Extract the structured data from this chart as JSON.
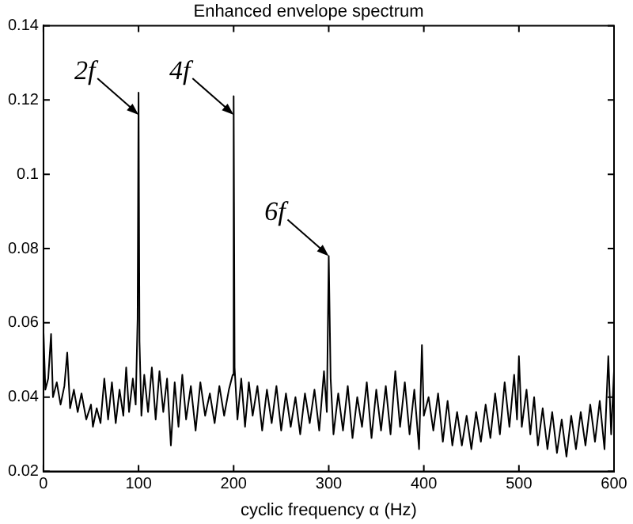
{
  "chart_data": {
    "type": "line",
    "title": "Enhanced envelope spectrum",
    "xlabel": "cyclic frequency α (Hz)",
    "x": [
      0,
      2,
      5,
      8,
      10,
      14,
      18,
      22,
      25,
      28,
      32,
      36,
      40,
      45,
      50,
      52,
      56,
      60,
      64,
      68,
      72,
      76,
      80,
      84,
      87,
      90,
      94,
      97,
      99,
      100,
      101,
      103,
      106,
      110,
      114,
      118,
      122,
      126,
      130,
      134,
      138,
      142,
      146,
      150,
      155,
      160,
      165,
      170,
      175,
      180,
      185,
      190,
      195,
      199,
      200,
      201,
      204,
      208,
      212,
      216,
      220,
      225,
      230,
      235,
      240,
      245,
      250,
      255,
      260,
      265,
      270,
      275,
      280,
      285,
      290,
      295,
      298,
      300,
      302,
      305,
      310,
      315,
      320,
      325,
      330,
      335,
      340,
      345,
      350,
      355,
      360,
      365,
      370,
      375,
      380,
      385,
      390,
      395,
      398,
      400,
      405,
      410,
      415,
      420,
      425,
      430,
      435,
      440,
      445,
      450,
      455,
      460,
      465,
      470,
      475,
      480,
      485,
      490,
      495,
      498,
      500,
      503,
      508,
      512,
      516,
      520,
      525,
      530,
      535,
      540,
      545,
      550,
      555,
      560,
      565,
      570,
      575,
      580,
      585,
      590,
      594,
      597,
      600
    ],
    "series": [
      {
        "color": "#000000",
        "values": [
          0.058,
          0.042,
          0.045,
          0.057,
          0.04,
          0.044,
          0.038,
          0.043,
          0.052,
          0.037,
          0.042,
          0.036,
          0.041,
          0.034,
          0.038,
          0.032,
          0.037,
          0.033,
          0.045,
          0.034,
          0.044,
          0.033,
          0.042,
          0.035,
          0.048,
          0.036,
          0.045,
          0.038,
          0.061,
          0.122,
          0.055,
          0.035,
          0.046,
          0.036,
          0.048,
          0.034,
          0.047,
          0.036,
          0.045,
          0.027,
          0.044,
          0.032,
          0.046,
          0.034,
          0.043,
          0.031,
          0.044,
          0.035,
          0.041,
          0.033,
          0.043,
          0.035,
          0.042,
          0.046,
          0.121,
          0.048,
          0.034,
          0.045,
          0.032,
          0.044,
          0.035,
          0.043,
          0.031,
          0.042,
          0.033,
          0.043,
          0.031,
          0.041,
          0.032,
          0.04,
          0.03,
          0.041,
          0.033,
          0.042,
          0.031,
          0.047,
          0.036,
          0.078,
          0.045,
          0.03,
          0.041,
          0.031,
          0.043,
          0.029,
          0.04,
          0.032,
          0.044,
          0.029,
          0.042,
          0.031,
          0.043,
          0.03,
          0.047,
          0.032,
          0.044,
          0.03,
          0.042,
          0.026,
          0.054,
          0.035,
          0.04,
          0.031,
          0.041,
          0.028,
          0.039,
          0.027,
          0.036,
          0.027,
          0.035,
          0.026,
          0.036,
          0.028,
          0.038,
          0.029,
          0.041,
          0.03,
          0.044,
          0.032,
          0.046,
          0.034,
          0.051,
          0.032,
          0.042,
          0.03,
          0.04,
          0.027,
          0.037,
          0.026,
          0.036,
          0.025,
          0.034,
          0.024,
          0.035,
          0.026,
          0.036,
          0.027,
          0.038,
          0.028,
          0.039,
          0.026,
          0.051,
          0.03,
          0.047
        ]
      }
    ],
    "xlim": [
      0,
      600
    ],
    "xticks": [
      0,
      100,
      200,
      300,
      400,
      500,
      600
    ],
    "ylim": [
      0.02,
      0.14
    ],
    "yticks": [
      0.02,
      0.04,
      0.06,
      0.08,
      0.1,
      0.12,
      0.14
    ],
    "grid": false,
    "legend": false,
    "marker": "none",
    "line_style": "solid",
    "annotations": [
      {
        "text": "2f",
        "x": 100,
        "y": 0.116
      },
      {
        "text": "4f",
        "x": 200,
        "y": 0.116
      },
      {
        "text": "6f",
        "x": 300,
        "y": 0.078
      }
    ]
  }
}
